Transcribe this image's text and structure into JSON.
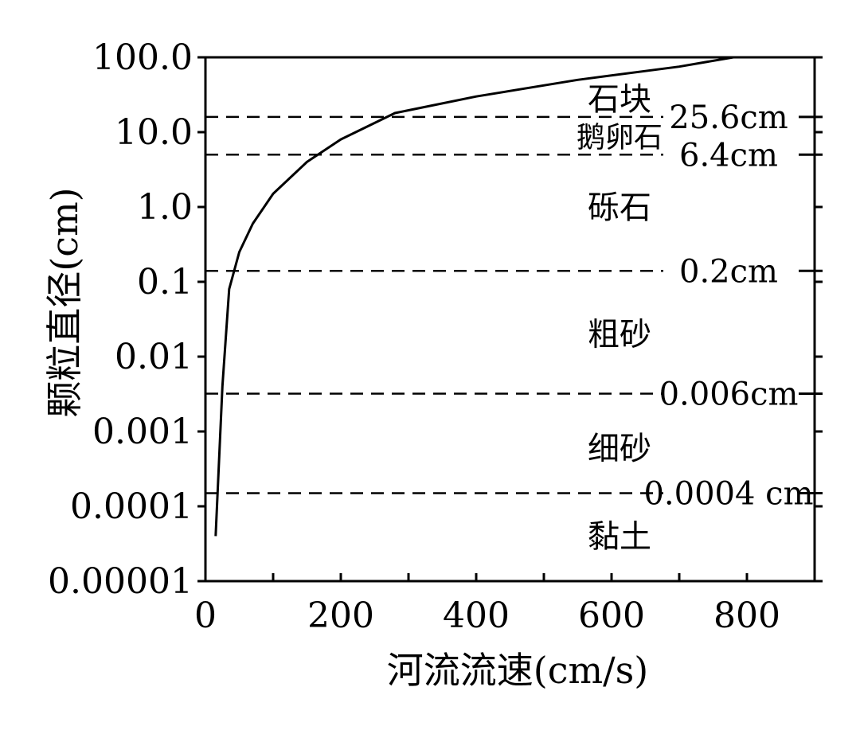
{
  "chart_data": {
    "type": "line",
    "xlabel": "河流流速(cm/s)",
    "ylabel": "颗粒直径(cm)",
    "xlim": [
      0,
      900
    ],
    "ylim": [
      1e-05,
      100
    ],
    "y_scale": "log",
    "x_ticks": [
      0,
      200,
      400,
      600,
      800
    ],
    "x_minor_ticks": [
      100,
      300,
      500,
      700,
      900
    ],
    "x_tick_labels": [
      "0",
      "200",
      "400",
      "600",
      "800"
    ],
    "y_ticks": [
      1e-05,
      0.0001,
      0.001,
      0.01,
      0.1,
      1,
      10,
      100
    ],
    "y_tick_labels": [
      "0.00001",
      "0.0001",
      "0.001",
      "0.01",
      "0.1",
      "1.0",
      "10.0",
      "100.0"
    ],
    "grid": false,
    "series": [
      {
        "x": [
          15,
          25,
          35,
          50,
          70,
          100,
          150,
          200,
          280,
          400,
          550,
          700,
          780
        ],
        "y": [
          4e-05,
          0.004,
          0.08,
          0.25,
          0.6,
          1.5,
          4,
          8,
          18,
          30,
          50,
          75,
          100
        ]
      }
    ],
    "thresholds": [
      {
        "label": "25.6cm",
        "y": 16
      },
      {
        "label": "6.4cm",
        "y": 5
      },
      {
        "label": "0.2cm",
        "y": 0.14
      },
      {
        "label": "0.006cm",
        "y": 0.0032
      },
      {
        "label": "0.0004 cm",
        "y": 0.00015
      }
    ],
    "zones": [
      {
        "label": "石块",
        "y": 28
      },
      {
        "label": "鹅卵石",
        "y": 9
      },
      {
        "label": "砾石",
        "y": 1.0
      },
      {
        "label": "粗砂",
        "y": 0.02
      },
      {
        "label": "细砂",
        "y": 0.0006
      },
      {
        "label": "黏土",
        "y": 4e-05
      }
    ]
  }
}
